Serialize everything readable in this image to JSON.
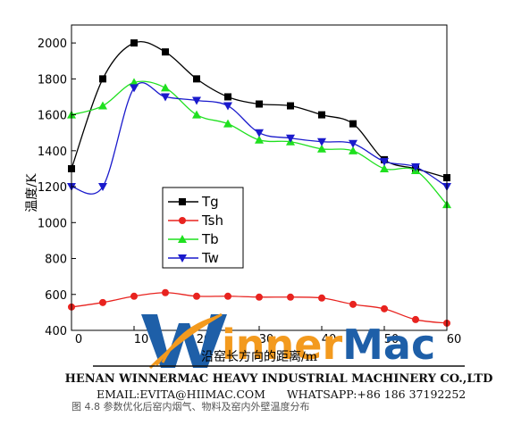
{
  "colors": {
    "Tg": "#000000",
    "Tsh": "#e8231f",
    "Tb": "#1fe01f",
    "Tw": "#1a1acc",
    "brand_orange": "#f39a1e",
    "brand_blue": "#1e5fa8"
  },
  "chart_data": {
    "type": "line",
    "ylabel": "温度/K",
    "xlabel": "沿窑长方向的距离/m",
    "xlim": [
      0,
      60
    ],
    "ylim": [
      400,
      2100
    ],
    "x_ticks": [
      "0",
      "10",
      "20",
      "30",
      "40",
      "50",
      "60"
    ],
    "y_ticks": [
      "400",
      "600",
      "800",
      "1000",
      "1200",
      "1400",
      "1600",
      "1800",
      "2000"
    ],
    "grid": false,
    "legend_position": "center-left",
    "series": [
      {
        "name": "Tg",
        "marker": "square",
        "x": [
          0,
          5,
          10,
          15,
          20,
          25,
          30,
          35,
          40,
          45,
          50,
          55,
          60
        ],
        "y": [
          1300,
          1800,
          2000,
          1950,
          1800,
          1700,
          1660,
          1650,
          1600,
          1550,
          1350,
          1300,
          1250
        ]
      },
      {
        "name": "Tsh",
        "marker": "circle",
        "x": [
          0,
          5,
          10,
          15,
          20,
          25,
          30,
          35,
          40,
          45,
          50,
          55,
          60
        ],
        "y": [
          530,
          555,
          590,
          610,
          590,
          590,
          585,
          585,
          580,
          545,
          520,
          460,
          440
        ]
      },
      {
        "name": "Tb",
        "marker": "triangle-up",
        "x": [
          0,
          5,
          10,
          15,
          20,
          25,
          30,
          35,
          40,
          45,
          50,
          55,
          60
        ],
        "y": [
          1600,
          1650,
          1780,
          1750,
          1600,
          1550,
          1460,
          1450,
          1410,
          1400,
          1300,
          1290,
          1100
        ]
      },
      {
        "name": "Tw",
        "marker": "triangle-down",
        "x": [
          0,
          5,
          10,
          15,
          20,
          25,
          30,
          35,
          40,
          45,
          50,
          55,
          60
        ],
        "y": [
          1200,
          1200,
          1750,
          1700,
          1680,
          1650,
          1500,
          1470,
          1450,
          1440,
          1340,
          1310,
          1200
        ]
      }
    ]
  },
  "watermark": {
    "brand": "WinnerMac",
    "company": "HENAN WINNERMAC HEAVY INDUSTRIAL MACHINERY CO.,LTD",
    "contact": "EMAIL:EVITA@HIIMAC.COM      WHATSAPP:+86 186 37192252"
  },
  "caption": "图 4.8  参数优化后窑内烟气、物料及窑内外壁温度分布"
}
